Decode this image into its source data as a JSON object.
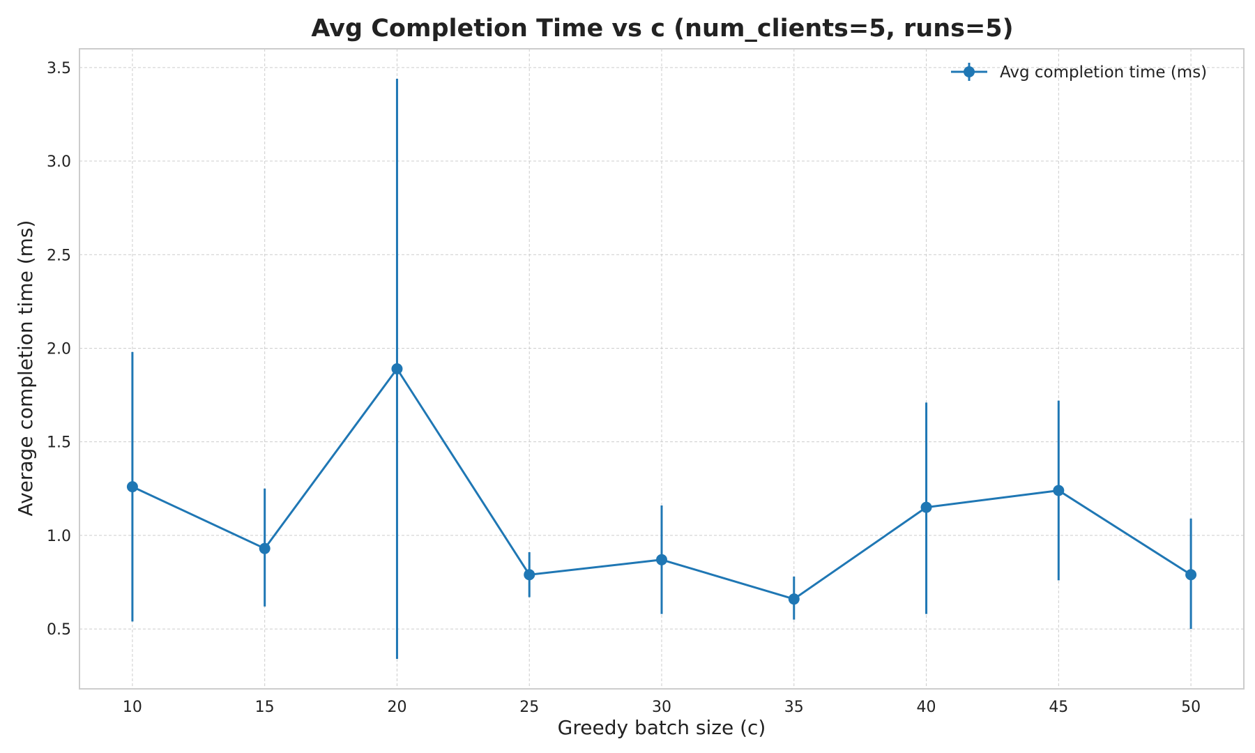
{
  "chart_data": {
    "type": "line",
    "title": "Avg Completion Time vs c (num_clients=5, runs=5)",
    "xlabel": "Greedy batch size (c)",
    "ylabel": "Average completion time (ms)",
    "xlim": [
      8,
      52
    ],
    "ylim": [
      0.18,
      3.6
    ],
    "xticks": [
      10,
      15,
      20,
      25,
      30,
      35,
      40,
      45,
      50
    ],
    "xtick_labels": [
      "10",
      "15",
      "20",
      "25",
      "30",
      "35",
      "40",
      "45",
      "50"
    ],
    "yticks": [
      0.5,
      1.0,
      1.5,
      2.0,
      2.5,
      3.0,
      3.5
    ],
    "ytick_labels": [
      "0.5",
      "1.0",
      "1.5",
      "2.0",
      "2.5",
      "3.0",
      "3.5"
    ],
    "grid": true,
    "legend_position": "top-right",
    "color": "#1f77b4",
    "series": [
      {
        "name": "Avg completion time (ms)",
        "x": [
          10,
          15,
          20,
          25,
          30,
          35,
          40,
          45,
          50
        ],
        "y": [
          1.26,
          0.93,
          1.89,
          0.79,
          0.87,
          0.66,
          1.15,
          1.24,
          0.79
        ],
        "error_low": [
          0.54,
          0.62,
          0.34,
          0.67,
          0.58,
          0.55,
          0.58,
          0.76,
          0.5
        ],
        "error_high": [
          1.98,
          1.25,
          3.44,
          0.91,
          1.16,
          0.78,
          1.71,
          1.72,
          1.09
        ]
      }
    ]
  }
}
